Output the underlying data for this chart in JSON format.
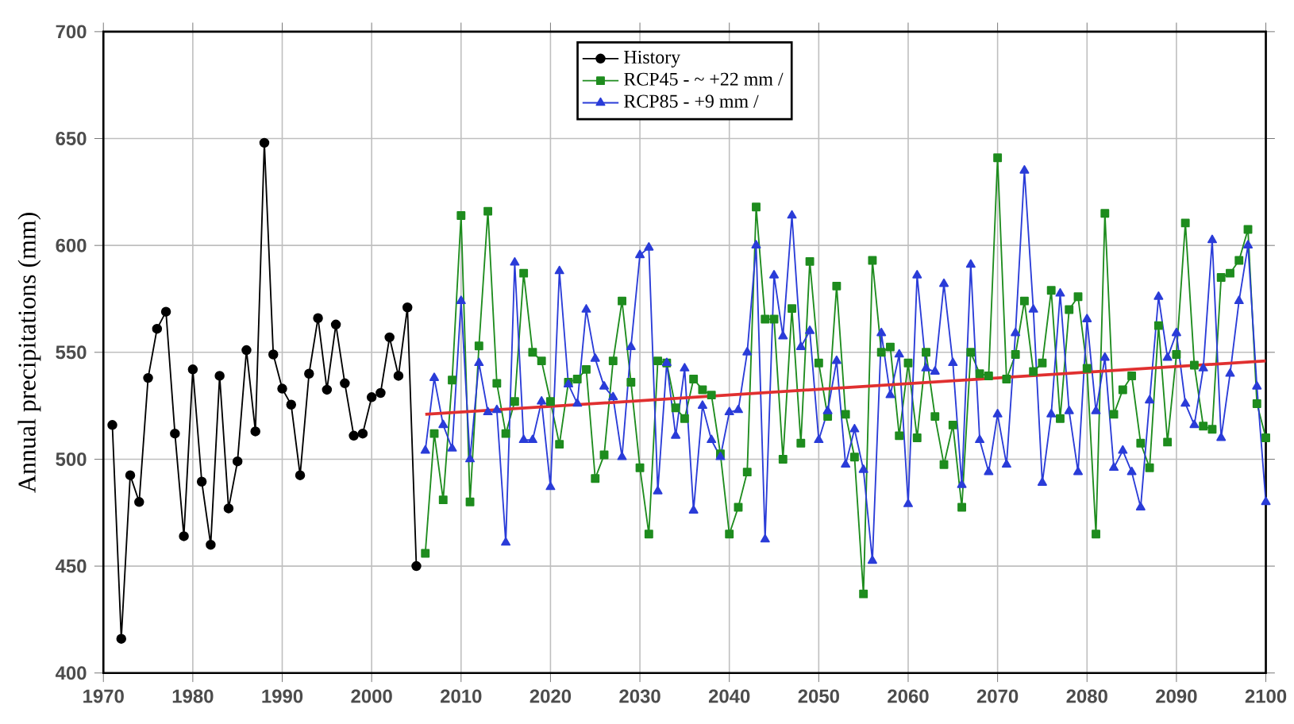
{
  "chart_data": {
    "type": "line",
    "ylabel": "Annual precipitations (mm)",
    "xlim": [
      1970,
      2100
    ],
    "ylim": [
      400,
      700
    ],
    "xticks": [
      1970,
      1980,
      1990,
      2000,
      2010,
      2020,
      2030,
      2040,
      2050,
      2060,
      2070,
      2080,
      2090,
      2100
    ],
    "yticks": [
      400,
      450,
      500,
      550,
      600,
      650,
      700
    ],
    "grid": true,
    "legend": "top",
    "line_style": "solid",
    "series": [
      {
        "name": "History",
        "color": "#000000",
        "marker": "circle",
        "x": [
          1971,
          1972,
          1973,
          1974,
          1975,
          1976,
          1977,
          1978,
          1979,
          1980,
          1981,
          1982,
          1983,
          1984,
          1985,
          1986,
          1987,
          1988,
          1989,
          1990,
          1991,
          1992,
          1993,
          1994,
          1995,
          1996,
          1997,
          1998,
          1999,
          2000,
          2001,
          2002,
          2003,
          2004,
          2005
        ],
        "values": [
          516,
          416,
          492.5,
          480,
          538,
          561,
          569,
          512,
          464,
          542,
          489.5,
          460,
          539,
          477,
          499,
          551,
          513,
          648,
          549,
          533,
          525.5,
          492.5,
          540,
          566,
          532.5,
          563,
          535.5,
          511,
          512,
          529,
          531,
          557,
          539,
          571,
          450
        ]
      },
      {
        "name": "RCP45 - ~ +22 mm /",
        "color": "#1e8c1e",
        "marker": "square",
        "x": [
          2006,
          2007,
          2008,
          2009,
          2010,
          2011,
          2012,
          2013,
          2014,
          2015,
          2016,
          2017,
          2018,
          2019,
          2020,
          2021,
          2022,
          2023,
          2024,
          2025,
          2026,
          2027,
          2028,
          2029,
          2030,
          2031,
          2032,
          2033,
          2034,
          2035,
          2036,
          2037,
          2038,
          2039,
          2040,
          2041,
          2042,
          2043,
          2044,
          2045,
          2046,
          2047,
          2048,
          2049,
          2050,
          2051,
          2052,
          2053,
          2054,
          2055,
          2056,
          2057,
          2058,
          2059,
          2060,
          2061,
          2062,
          2063,
          2064,
          2065,
          2066,
          2067,
          2068,
          2069,
          2070,
          2071,
          2072,
          2073,
          2074,
          2075,
          2076,
          2077,
          2078,
          2079,
          2080,
          2081,
          2082,
          2083,
          2084,
          2085,
          2086,
          2087,
          2088,
          2089,
          2090,
          2091,
          2092,
          2093,
          2094,
          2095,
          2096,
          2097,
          2098,
          2099,
          2100
        ],
        "values": [
          456,
          512,
          481,
          537,
          614,
          480,
          553,
          616,
          535.5,
          512,
          527,
          587,
          550,
          546,
          527,
          507,
          536,
          537.5,
          542,
          491,
          502,
          546,
          574,
          536,
          496,
          465,
          546,
          545,
          524,
          519,
          537.5,
          532.5,
          530,
          502.5,
          465,
          477.5,
          494,
          618,
          565.5,
          565.5,
          500,
          570.5,
          507.5,
          592.5,
          545,
          520,
          581,
          521,
          501,
          437,
          593,
          550,
          552.5,
          511,
          545,
          510,
          550,
          520,
          497.5,
          516,
          477.5,
          550,
          540,
          539,
          641,
          537.5,
          549,
          574,
          541,
          545,
          579,
          519,
          570,
          576,
          542.5,
          465,
          615,
          521,
          532.5,
          539,
          507.5,
          496,
          562.5,
          508,
          549,
          610.5,
          544,
          515.5,
          514,
          585,
          587,
          593,
          607.5,
          526,
          510
        ]
      },
      {
        "name": "RCP85 - +9 mm /",
        "color": "#2a3cd8",
        "marker": "triangle",
        "x": [
          2006,
          2007,
          2008,
          2009,
          2010,
          2011,
          2012,
          2013,
          2014,
          2015,
          2016,
          2017,
          2018,
          2019,
          2020,
          2021,
          2022,
          2023,
          2024,
          2025,
          2026,
          2027,
          2028,
          2029,
          2030,
          2031,
          2032,
          2033,
          2034,
          2035,
          2036,
          2037,
          2038,
          2039,
          2040,
          2041,
          2042,
          2043,
          2044,
          2045,
          2046,
          2047,
          2048,
          2049,
          2050,
          2051,
          2052,
          2053,
          2054,
          2055,
          2056,
          2057,
          2058,
          2059,
          2060,
          2061,
          2062,
          2063,
          2064,
          2065,
          2066,
          2067,
          2068,
          2069,
          2070,
          2071,
          2072,
          2073,
          2074,
          2075,
          2076,
          2077,
          2078,
          2079,
          2080,
          2081,
          2082,
          2083,
          2084,
          2085,
          2086,
          2087,
          2088,
          2089,
          2090,
          2091,
          2092,
          2093,
          2094,
          2095,
          2096,
          2097,
          2098,
          2099,
          2100
        ],
        "values": [
          504,
          538,
          516,
          505,
          574,
          500,
          545,
          522,
          523,
          461,
          592,
          509,
          509,
          527,
          487,
          588,
          535,
          526,
          570,
          547,
          534,
          529,
          501,
          552.5,
          595.5,
          599,
          485,
          545,
          511,
          542.5,
          476,
          525,
          509,
          501,
          522,
          523,
          550,
          600,
          462.5,
          586,
          557.5,
          614,
          552.5,
          560,
          509,
          522.5,
          546,
          497.5,
          514,
          495,
          452.5,
          559,
          530,
          549,
          479,
          586,
          542.5,
          541,
          582,
          545,
          488,
          591,
          509,
          494,
          521,
          497.5,
          559,
          635,
          570,
          489,
          521,
          577.5,
          522.5,
          494,
          565.5,
          522.5,
          547.5,
          496,
          504,
          494,
          477.5,
          527.5,
          576,
          547.5,
          559,
          526,
          516,
          542.5,
          602.5,
          510,
          540,
          574,
          600,
          534,
          480
        ]
      },
      {
        "type": "line",
        "color": "#e03030",
        "marker": "none",
        "x": [
          2006,
          2100
        ],
        "values": [
          521,
          546
        ]
      }
    ]
  }
}
